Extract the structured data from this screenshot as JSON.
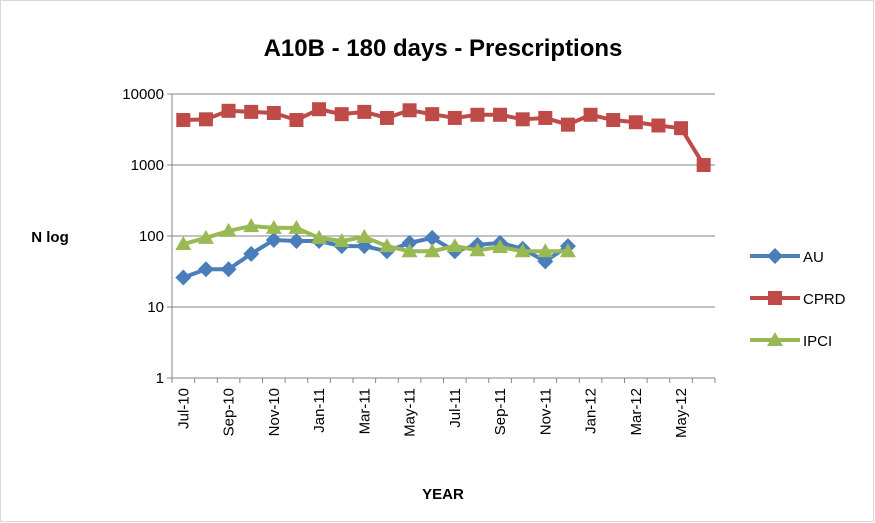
{
  "chart_data": {
    "type": "line",
    "title": "A10B - 180 days - Prescriptions",
    "x_label": "YEAR",
    "y_label": "N log",
    "log_scale": true,
    "categories": [
      "Jul-10",
      null,
      "Sep-10",
      null,
      "Nov-10",
      null,
      "Jan-11",
      null,
      "Mar-11",
      null,
      "May-11",
      null,
      "Jul-11",
      null,
      "Sep-11",
      null,
      "Nov-11",
      null,
      "Jan-12",
      null,
      "Mar-12",
      null,
      "May-12",
      null
    ],
    "ylim": [
      1,
      10000
    ],
    "yticks": [
      1,
      10,
      100,
      1000,
      10000
    ],
    "grid": true,
    "legend": "right",
    "series": [
      {
        "name": "AU",
        "color": "#4a7ebb",
        "marker": "diamond",
        "values": [
          26,
          34,
          34,
          56,
          88,
          85,
          85,
          72,
          72,
          61,
          80,
          94,
          61,
          75,
          80,
          66,
          44,
          72,
          null,
          null,
          null,
          null,
          null,
          null
        ]
      },
      {
        "name": "CPRD",
        "color": "#be4b48",
        "marker": "square",
        "values": [
          4300,
          4400,
          5800,
          5600,
          5400,
          4300,
          6100,
          5200,
          5600,
          4600,
          5900,
          5200,
          4600,
          5100,
          5100,
          4400,
          4600,
          3700,
          5100,
          4300,
          4000,
          3600,
          3300,
          1000
        ]
      },
      {
        "name": "IPCI",
        "color": "#98b954",
        "marker": "triangle",
        "values": [
          77,
          94,
          118,
          138,
          130,
          130,
          94,
          85,
          97,
          72,
          61,
          61,
          72,
          63,
          70,
          61,
          61,
          61,
          null,
          null,
          null,
          null,
          null,
          null
        ]
      }
    ]
  }
}
